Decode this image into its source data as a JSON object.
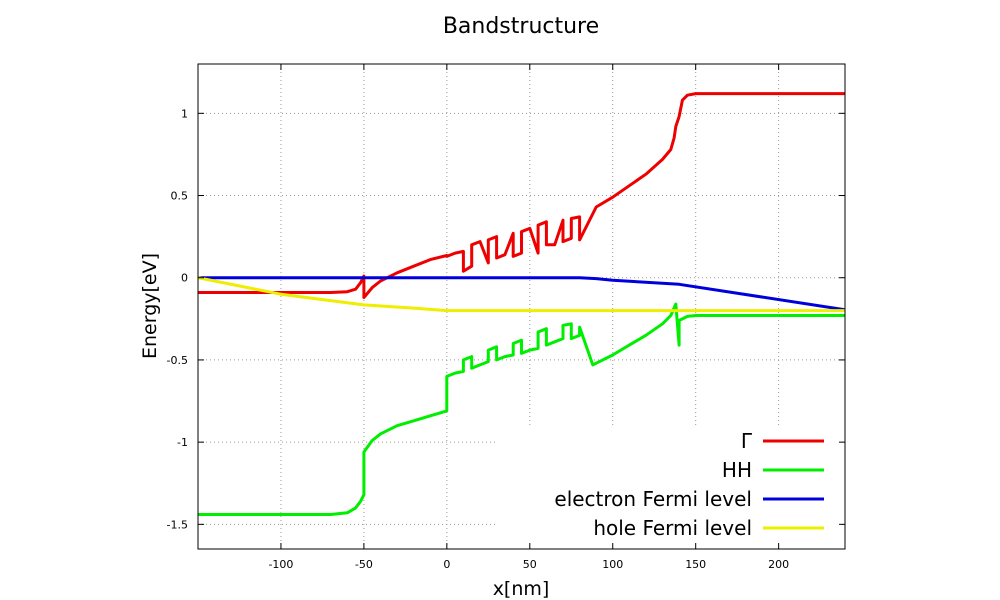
{
  "chart_data": {
    "type": "line",
    "title": "Bandstructure",
    "xlabel": "x[nm]",
    "ylabel": "Energy[eV]",
    "xlim": [
      -150,
      240
    ],
    "ylim": [
      -1.65,
      1.3
    ],
    "xticks": [
      -100,
      -50,
      0,
      50,
      100,
      150,
      200
    ],
    "yticks": [
      -1.5,
      -1,
      -0.5,
      0,
      0.5,
      1
    ],
    "ytick_labels": [
      "-1.5",
      "-1",
      "-0.5",
      "0",
      "0.5",
      "1"
    ],
    "grid": true,
    "legend_position": "bottom-right",
    "series": [
      {
        "name": "Γ",
        "color": "#ee0000",
        "x": [
          -150,
          -80,
          -70,
          -60,
          -55,
          -52,
          -50,
          -50,
          -45,
          -40,
          -30,
          -20,
          -10,
          0,
          0,
          5,
          10,
          10,
          15,
          15,
          20,
          25,
          25,
          30,
          30,
          35,
          40,
          40,
          45,
          45,
          50,
          55,
          55,
          60,
          60,
          65,
          70,
          70,
          75,
          75,
          80,
          80,
          90,
          100,
          110,
          120,
          130,
          135,
          137,
          138,
          140,
          142,
          145,
          150,
          240
        ],
        "y": [
          -0.09,
          -0.09,
          -0.09,
          -0.085,
          -0.07,
          -0.03,
          0.01,
          -0.12,
          -0.06,
          -0.02,
          0.03,
          0.07,
          0.11,
          0.135,
          0.13,
          0.15,
          0.16,
          0.04,
          0.07,
          0.2,
          0.22,
          0.09,
          0.23,
          0.25,
          0.12,
          0.14,
          0.27,
          0.13,
          0.15,
          0.28,
          0.3,
          0.15,
          0.32,
          0.34,
          0.2,
          0.2,
          0.35,
          0.22,
          0.24,
          0.36,
          0.37,
          0.23,
          0.43,
          0.49,
          0.56,
          0.63,
          0.72,
          0.78,
          0.85,
          0.92,
          0.98,
          1.08,
          1.11,
          1.12,
          1.12
        ]
      },
      {
        "name": "HH",
        "color": "#00ee00",
        "x": [
          -150,
          -70,
          -60,
          -55,
          -52,
          -50,
          -50,
          -45,
          -40,
          -30,
          -20,
          -10,
          0,
          0,
          5,
          10,
          10,
          15,
          15,
          20,
          25,
          25,
          30,
          30,
          35,
          40,
          40,
          45,
          45,
          50,
          55,
          55,
          60,
          60,
          65,
          70,
          70,
          75,
          75,
          80,
          80,
          88,
          90,
          100,
          110,
          120,
          130,
          135,
          138,
          140,
          140,
          145,
          150,
          240
        ],
        "y": [
          -1.44,
          -1.44,
          -1.43,
          -1.4,
          -1.36,
          -1.32,
          -1.06,
          -0.99,
          -0.95,
          -0.9,
          -0.87,
          -0.84,
          -0.81,
          -0.6,
          -0.58,
          -0.57,
          -0.5,
          -0.48,
          -0.55,
          -0.53,
          -0.51,
          -0.44,
          -0.42,
          -0.5,
          -0.48,
          -0.47,
          -0.4,
          -0.38,
          -0.46,
          -0.44,
          -0.43,
          -0.33,
          -0.31,
          -0.41,
          -0.39,
          -0.37,
          -0.29,
          -0.28,
          -0.37,
          -0.35,
          -0.3,
          -0.53,
          -0.52,
          -0.47,
          -0.41,
          -0.35,
          -0.28,
          -0.23,
          -0.16,
          -0.41,
          -0.26,
          -0.235,
          -0.23,
          -0.23
        ]
      },
      {
        "name": "electron Fermi level",
        "color": "#0000dd",
        "x": [
          -150,
          80,
          90,
          100,
          140,
          240
        ],
        "y": [
          0,
          0,
          -0.005,
          -0.015,
          -0.04,
          -0.195
        ]
      },
      {
        "name": "hole Fermi level",
        "color": "#eeee00",
        "x": [
          -150,
          -100,
          -50,
          -20,
          0,
          240
        ],
        "y": [
          0,
          -0.1,
          -0.165,
          -0.185,
          -0.2,
          -0.2
        ]
      }
    ]
  }
}
